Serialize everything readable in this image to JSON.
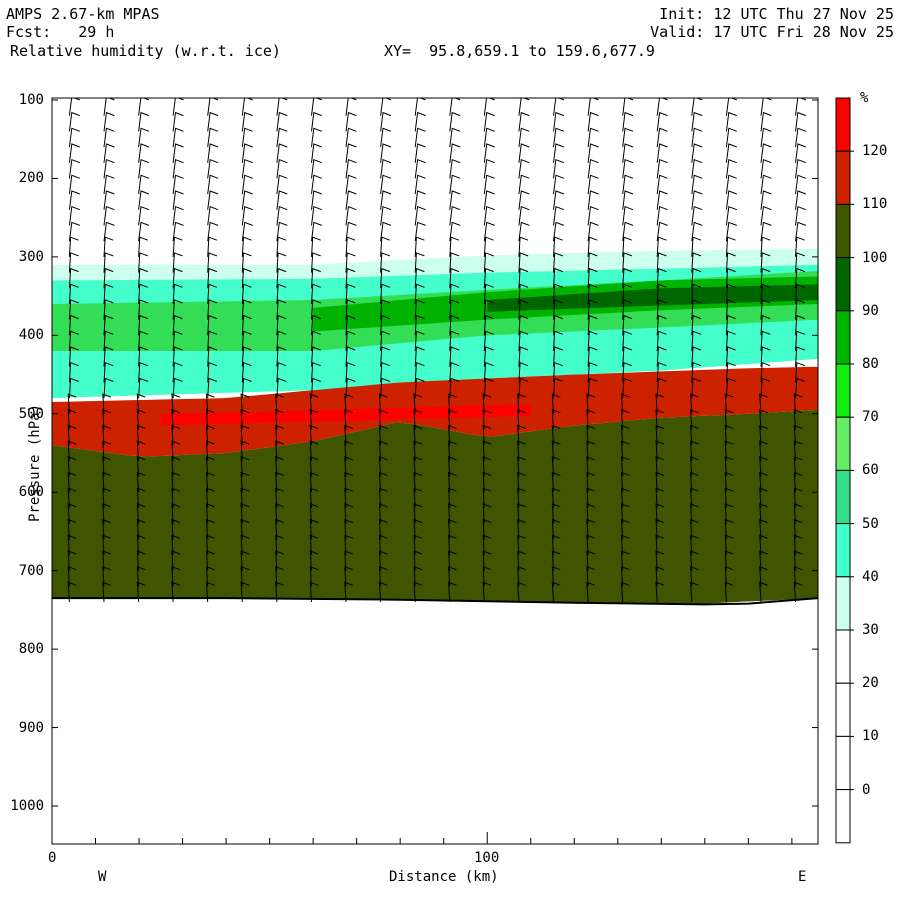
{
  "header": {
    "model": "AMPS 2.67-km MPAS",
    "forecast": "Fcst:   29 h",
    "field": "Relative humidity (w.r.t. ice)",
    "xy": "XY=  95.8,659.1 to 159.6,677.9",
    "init": "Init: 12 UTC Thu 27 Nov 25",
    "valid": "Valid: 17 UTC Fri 28 Nov 25"
  },
  "chart_data": {
    "type": "heatmap",
    "title": "Relative humidity (w.r.t. ice)",
    "xlabel": "Distance (km)",
    "ylabel": "Pressure (hPa)",
    "x_ticks": [
      "0",
      "100"
    ],
    "y_ticks": [
      "100",
      "200",
      "300",
      "400",
      "500",
      "600",
      "700",
      "800",
      "900",
      "1000"
    ],
    "x_range": [
      0,
      176
    ],
    "y_range_hpa": [
      100,
      1050
    ],
    "direction_left": "W",
    "direction_right": "E",
    "colorbar": {
      "unit": "%",
      "levels": [
        "120",
        "110",
        "100",
        "90",
        "80",
        "70",
        "60",
        "50",
        "40",
        "30",
        "20",
        "10",
        "0"
      ],
      "colors": [
        "#ff0000",
        "#cc2200",
        "#3f5500",
        "#006600",
        "#00b300",
        "#11ee11",
        "#66ee66",
        "#33dd88",
        "#44ffcc",
        "#ccffee",
        "#ffffff",
        "#ffffff",
        "#ffffff",
        "#ffffff"
      ]
    },
    "bands": [
      {
        "name": "30-40",
        "color": "#ccffee",
        "top": [
          [
            0,
            310
          ],
          [
            60,
            310
          ],
          [
            100,
            298
          ],
          [
            140,
            292
          ],
          [
            176,
            290
          ]
        ],
        "bottom": [
          [
            0,
            340
          ],
          [
            60,
            338
          ],
          [
            100,
            330
          ],
          [
            140,
            325
          ],
          [
            176,
            320
          ]
        ]
      },
      {
        "name": "40-50",
        "color": "#44ffcc",
        "top": [
          [
            0,
            330
          ],
          [
            60,
            328
          ],
          [
            100,
            320
          ],
          [
            140,
            315
          ],
          [
            176,
            310
          ]
        ],
        "bottom": [
          [
            0,
            480
          ],
          [
            60,
            470
          ],
          [
            100,
            455
          ],
          [
            140,
            445
          ],
          [
            176,
            430
          ]
        ]
      },
      {
        "name": "60-80",
        "color": "#33dd55",
        "top": [
          [
            0,
            360
          ],
          [
            60,
            355
          ],
          [
            100,
            342
          ],
          [
            140,
            330
          ],
          [
            176,
            318
          ]
        ],
        "bottom": [
          [
            0,
            420
          ],
          [
            60,
            420
          ],
          [
            100,
            400
          ],
          [
            140,
            390
          ],
          [
            176,
            380
          ]
        ]
      },
      {
        "name": "80-90",
        "color": "#00b300",
        "top": [
          [
            60,
            365
          ],
          [
            100,
            345
          ],
          [
            140,
            330
          ],
          [
            176,
            325
          ]
        ],
        "bottom": [
          [
            60,
            395
          ],
          [
            100,
            380
          ],
          [
            140,
            368
          ],
          [
            176,
            360
          ]
        ]
      },
      {
        "name": "90-100",
        "color": "#006600",
        "top": [
          [
            100,
            355
          ],
          [
            140,
            340
          ],
          [
            176,
            335
          ]
        ],
        "bottom": [
          [
            100,
            370
          ],
          [
            140,
            362
          ],
          [
            176,
            355
          ]
        ]
      },
      {
        "name": "100-110",
        "color": "#3f5500",
        "top": [
          [
            0,
            540
          ],
          [
            20,
            555
          ],
          [
            40,
            550
          ],
          [
            60,
            535
          ],
          [
            80,
            510
          ],
          [
            100,
            530
          ],
          [
            120,
            515
          ],
          [
            140,
            505
          ],
          [
            160,
            500
          ],
          [
            176,
            495
          ]
        ],
        "bottom": [
          [
            0,
            735
          ],
          [
            40,
            735
          ],
          [
            80,
            737
          ],
          [
            120,
            740
          ],
          [
            150,
            742
          ],
          [
            176,
            735
          ]
        ]
      },
      {
        "name": "110-120",
        "color": "#cc2200",
        "top": [
          [
            0,
            485
          ],
          [
            40,
            480
          ],
          [
            80,
            460
          ],
          [
            120,
            450
          ],
          [
            160,
            442
          ],
          [
            176,
            440
          ]
        ],
        "bottom": [
          [
            0,
            540
          ],
          [
            20,
            555
          ],
          [
            40,
            550
          ],
          [
            60,
            535
          ],
          [
            80,
            510
          ],
          [
            100,
            530
          ],
          [
            120,
            515
          ],
          [
            140,
            505
          ],
          [
            160,
            500
          ],
          [
            176,
            495
          ]
        ]
      },
      {
        "name": ">120",
        "color": "#ff0000",
        "top": [
          [
            25,
            500
          ],
          [
            45,
            498
          ],
          [
            95,
            490
          ],
          [
            110,
            488
          ]
        ],
        "bottom": [
          [
            25,
            515
          ],
          [
            45,
            512
          ],
          [
            95,
            505
          ],
          [
            110,
            503
          ]
        ]
      }
    ],
    "terrain_line": [
      [
        0,
        735
      ],
      [
        40,
        735
      ],
      [
        80,
        737
      ],
      [
        120,
        741
      ],
      [
        150,
        743
      ],
      [
        160,
        742
      ],
      [
        176,
        735
      ]
    ],
    "barb_columns": 22,
    "barb_levels_hpa": [
      120,
      140,
      160,
      180,
      200,
      220,
      240,
      260,
      280,
      300,
      320,
      340,
      360,
      380,
      400,
      420,
      440,
      460,
      480,
      500,
      520,
      540,
      560,
      580,
      600,
      620,
      640,
      660,
      680,
      700,
      720,
      740
    ]
  }
}
